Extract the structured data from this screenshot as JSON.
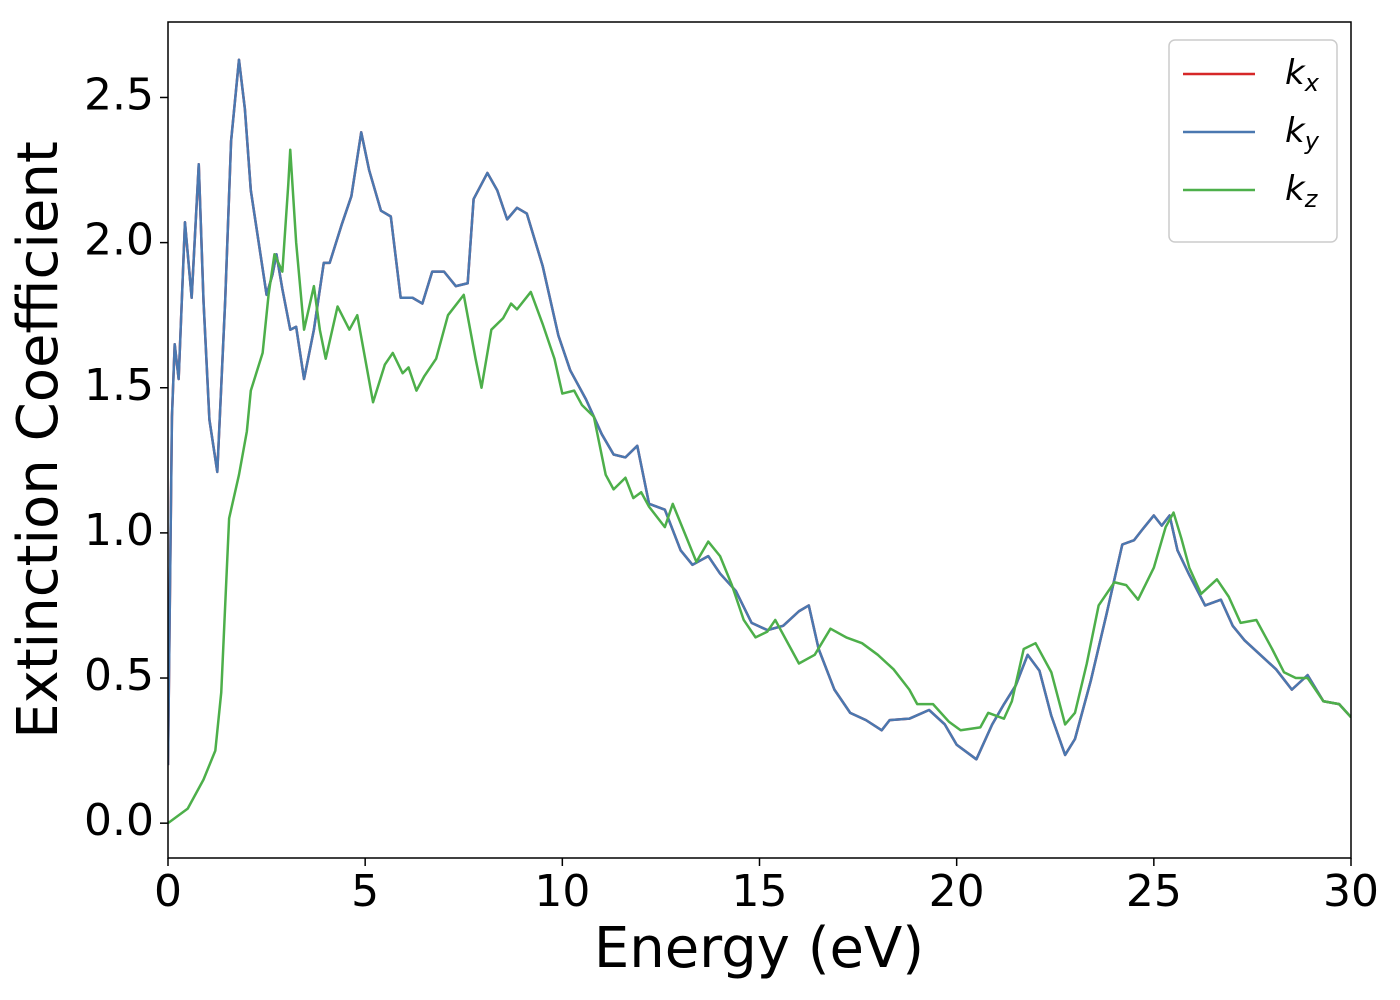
{
  "chart_data": {
    "type": "line",
    "xlabel": "Energy (eV)",
    "ylabel": "Extinction Coefficient",
    "xlim": [
      0,
      30
    ],
    "ylim": [
      -0.12,
      2.76
    ],
    "xticks": [
      0,
      5,
      10,
      15,
      20,
      25,
      30
    ],
    "yticks": [
      {
        "value": 0,
        "label": "0.0"
      },
      0.5,
      {
        "value": 1,
        "label": "1.0"
      },
      1.5,
      {
        "value": 2,
        "label": "2.0"
      },
      2.5
    ],
    "legend": "upper right",
    "series": [
      {
        "name": "kx",
        "color": "#d62728",
        "x": [
          0,
          0.1,
          0.17,
          0.27,
          0.43,
          0.6,
          0.78,
          0.9,
          1.05,
          1.25,
          1.45,
          1.6,
          1.8,
          1.95,
          2.1,
          2.3,
          2.5,
          2.65,
          2.75,
          2.9,
          3.1,
          3.25,
          3.45,
          3.7,
          3.95,
          4.1,
          4.4,
          4.65,
          4.9,
          5.1,
          5.4,
          5.65,
          5.9,
          6.2,
          6.45,
          6.7,
          7.0,
          7.3,
          7.6,
          7.75,
          8.1,
          8.35,
          8.6,
          8.85,
          9.1,
          9.5,
          9.9,
          10.2,
          10.6,
          11.0,
          11.3,
          11.6,
          11.9,
          12.2,
          12.6,
          13.0,
          13.3,
          13.7,
          14.0,
          14.4,
          14.8,
          15.2,
          15.6,
          16.0,
          16.25,
          16.5,
          16.9,
          17.3,
          17.7,
          18.1,
          18.3,
          18.8,
          19.3,
          19.7,
          20.0,
          20.5,
          20.9,
          21.2,
          21.5,
          21.8,
          22.1,
          22.4,
          22.75,
          23.0,
          23.4,
          23.8,
          24.2,
          24.5,
          24.7,
          25.0,
          25.2,
          25.4,
          25.6,
          25.9,
          26.3,
          26.7,
          27.0,
          27.3,
          27.7,
          28.1,
          28.5,
          28.9,
          29.3,
          29.7,
          30
        ],
        "values": [
          0.2,
          1.4,
          1.65,
          1.53,
          2.07,
          1.81,
          2.27,
          1.8,
          1.39,
          1.21,
          1.8,
          2.35,
          2.63,
          2.46,
          2.18,
          2.0,
          1.82,
          1.89,
          1.96,
          1.84,
          1.7,
          1.71,
          1.53,
          1.7,
          1.93,
          1.93,
          2.06,
          2.16,
          2.38,
          2.25,
          2.11,
          2.09,
          1.81,
          1.81,
          1.79,
          1.9,
          1.9,
          1.85,
          1.86,
          2.15,
          2.24,
          2.18,
          2.08,
          2.12,
          2.1,
          1.92,
          1.68,
          1.56,
          1.46,
          1.34,
          1.27,
          1.26,
          1.3,
          1.1,
          1.08,
          0.94,
          0.89,
          0.92,
          0.86,
          0.8,
          0.69,
          0.665,
          0.68,
          0.73,
          0.75,
          0.6,
          0.46,
          0.38,
          0.355,
          0.32,
          0.355,
          0.36,
          0.39,
          0.34,
          0.27,
          0.22,
          0.34,
          0.41,
          0.475,
          0.58,
          0.525,
          0.37,
          0.235,
          0.29,
          0.49,
          0.72,
          0.96,
          0.975,
          1.01,
          1.06,
          1.025,
          1.06,
          0.94,
          0.855,
          0.75,
          0.77,
          0.68,
          0.63,
          0.58,
          0.53,
          0.46,
          0.51,
          0.42,
          0.41,
          0.365
        ]
      },
      {
        "name": "ky",
        "color": "#4a78b0",
        "x": [
          0,
          0.1,
          0.17,
          0.27,
          0.43,
          0.6,
          0.78,
          0.9,
          1.05,
          1.25,
          1.45,
          1.6,
          1.8,
          1.95,
          2.1,
          2.3,
          2.5,
          2.65,
          2.75,
          2.9,
          3.1,
          3.25,
          3.45,
          3.7,
          3.95,
          4.1,
          4.4,
          4.65,
          4.9,
          5.1,
          5.4,
          5.65,
          5.9,
          6.2,
          6.45,
          6.7,
          7.0,
          7.3,
          7.6,
          7.75,
          8.1,
          8.35,
          8.6,
          8.85,
          9.1,
          9.5,
          9.9,
          10.2,
          10.6,
          11.0,
          11.3,
          11.6,
          11.9,
          12.2,
          12.6,
          13.0,
          13.3,
          13.7,
          14.0,
          14.4,
          14.8,
          15.2,
          15.6,
          16.0,
          16.25,
          16.5,
          16.9,
          17.3,
          17.7,
          18.1,
          18.3,
          18.8,
          19.3,
          19.7,
          20.0,
          20.5,
          20.9,
          21.2,
          21.5,
          21.8,
          22.1,
          22.4,
          22.75,
          23.0,
          23.4,
          23.8,
          24.2,
          24.5,
          24.7,
          25.0,
          25.2,
          25.4,
          25.6,
          25.9,
          26.3,
          26.7,
          27.0,
          27.3,
          27.7,
          28.1,
          28.5,
          28.9,
          29.3,
          29.7,
          30
        ],
        "values": [
          0.2,
          1.4,
          1.65,
          1.53,
          2.07,
          1.81,
          2.27,
          1.8,
          1.39,
          1.21,
          1.8,
          2.35,
          2.63,
          2.46,
          2.18,
          2.0,
          1.82,
          1.89,
          1.96,
          1.84,
          1.7,
          1.71,
          1.53,
          1.7,
          1.93,
          1.93,
          2.06,
          2.16,
          2.38,
          2.25,
          2.11,
          2.09,
          1.81,
          1.81,
          1.79,
          1.9,
          1.9,
          1.85,
          1.86,
          2.15,
          2.24,
          2.18,
          2.08,
          2.12,
          2.1,
          1.92,
          1.68,
          1.56,
          1.46,
          1.34,
          1.27,
          1.26,
          1.3,
          1.1,
          1.08,
          0.94,
          0.89,
          0.92,
          0.86,
          0.8,
          0.69,
          0.665,
          0.68,
          0.73,
          0.75,
          0.6,
          0.46,
          0.38,
          0.355,
          0.32,
          0.355,
          0.36,
          0.39,
          0.34,
          0.27,
          0.22,
          0.34,
          0.41,
          0.475,
          0.58,
          0.525,
          0.37,
          0.235,
          0.29,
          0.49,
          0.72,
          0.96,
          0.975,
          1.01,
          1.06,
          1.025,
          1.06,
          0.94,
          0.855,
          0.75,
          0.77,
          0.68,
          0.63,
          0.58,
          0.53,
          0.46,
          0.51,
          0.42,
          0.41,
          0.365
        ]
      },
      {
        "name": "kz",
        "color": "#4daf4a",
        "x": [
          0,
          0.5,
          0.9,
          1.2,
          1.35,
          1.55,
          1.8,
          2.0,
          2.1,
          2.4,
          2.55,
          2.7,
          2.9,
          3.05,
          3.1,
          3.25,
          3.45,
          3.7,
          3.85,
          4.0,
          4.3,
          4.6,
          4.8,
          5.0,
          5.2,
          5.5,
          5.7,
          5.95,
          6.1,
          6.3,
          6.5,
          6.8,
          7.1,
          7.5,
          7.8,
          7.95,
          8.2,
          8.5,
          8.7,
          8.85,
          9.2,
          9.5,
          9.8,
          10.0,
          10.3,
          10.5,
          10.8,
          11.1,
          11.3,
          11.6,
          11.8,
          12.0,
          12.2,
          12.6,
          12.8,
          13.1,
          13.4,
          13.7,
          14.0,
          14.3,
          14.6,
          14.9,
          15.2,
          15.4,
          15.8,
          16.0,
          16.4,
          16.8,
          17.2,
          17.6,
          18.0,
          18.4,
          18.8,
          19.0,
          19.4,
          19.8,
          20.1,
          20.6,
          20.8,
          21.2,
          21.4,
          21.7,
          22.0,
          22.4,
          22.75,
          23.0,
          23.3,
          23.6,
          24.0,
          24.3,
          24.6,
          25.0,
          25.3,
          25.5,
          25.7,
          25.9,
          26.2,
          26.6,
          26.9,
          27.2,
          27.6,
          28.0,
          28.3,
          28.6,
          28.9,
          29.3,
          29.7,
          30
        ],
        "values": [
          0.0,
          0.05,
          0.15,
          0.25,
          0.45,
          1.05,
          1.2,
          1.35,
          1.49,
          1.62,
          1.82,
          1.96,
          1.9,
          2.2,
          2.32,
          2.0,
          1.7,
          1.85,
          1.7,
          1.6,
          1.78,
          1.7,
          1.75,
          1.6,
          1.45,
          1.58,
          1.62,
          1.55,
          1.57,
          1.49,
          1.54,
          1.6,
          1.75,
          1.82,
          1.6,
          1.5,
          1.7,
          1.74,
          1.79,
          1.77,
          1.83,
          1.72,
          1.6,
          1.48,
          1.49,
          1.44,
          1.4,
          1.2,
          1.15,
          1.19,
          1.12,
          1.14,
          1.09,
          1.02,
          1.1,
          1.0,
          0.9,
          0.97,
          0.92,
          0.82,
          0.7,
          0.64,
          0.66,
          0.7,
          0.6,
          0.55,
          0.58,
          0.67,
          0.64,
          0.62,
          0.58,
          0.53,
          0.46,
          0.41,
          0.41,
          0.35,
          0.32,
          0.33,
          0.38,
          0.36,
          0.42,
          0.6,
          0.62,
          0.52,
          0.34,
          0.38,
          0.55,
          0.75,
          0.83,
          0.82,
          0.77,
          0.88,
          1.02,
          1.07,
          0.98,
          0.88,
          0.79,
          0.84,
          0.78,
          0.69,
          0.7,
          0.6,
          0.52,
          0.5,
          0.5,
          0.42,
          0.41,
          0.365
        ]
      }
    ]
  }
}
